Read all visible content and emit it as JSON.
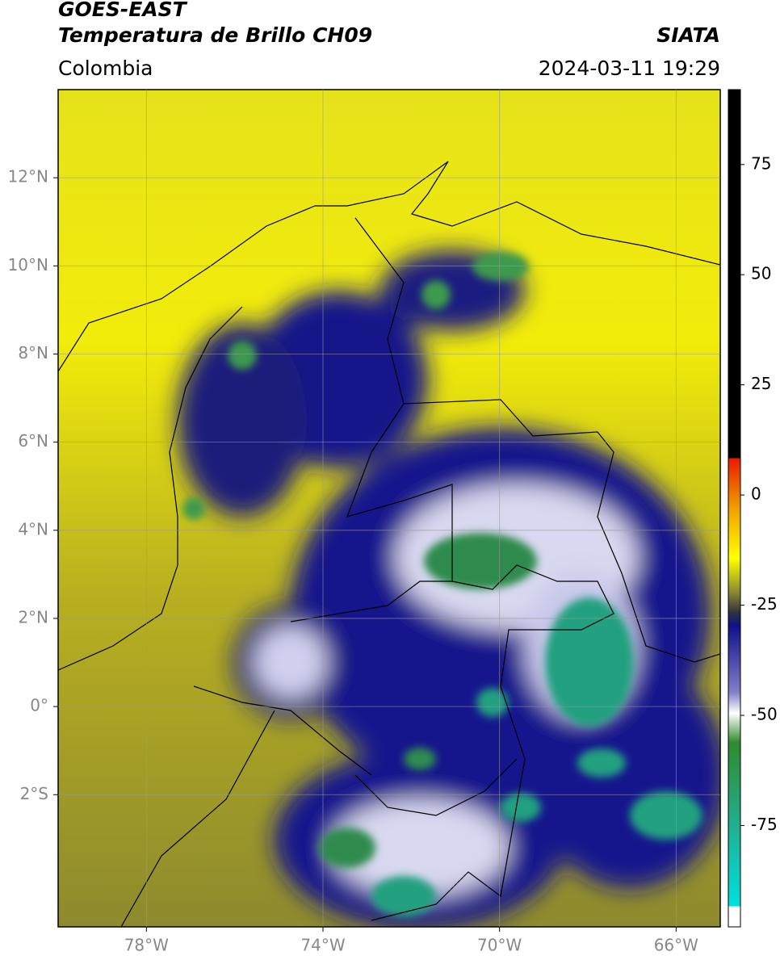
{
  "chart_data": {
    "type": "map",
    "title": "GOES-EAST",
    "subtitle": "Temperatura de Brillo CH09",
    "source": "SIATA",
    "region": "Colombia",
    "datetime": "2024-03-11 19:29",
    "xlim": [
      -80,
      -65
    ],
    "xticks": [
      {
        "value": -78,
        "label": "78°W"
      },
      {
        "value": -74,
        "label": "74°W"
      },
      {
        "value": -70,
        "label": "70°W"
      },
      {
        "value": -66,
        "label": "66°W"
      }
    ],
    "ylim": [
      -5,
      14
    ],
    "yticks": [
      {
        "value": 12,
        "label": "12°N"
      },
      {
        "value": 10,
        "label": "10°N"
      },
      {
        "value": 8,
        "label": "8°N"
      },
      {
        "value": 6,
        "label": "6°N"
      },
      {
        "value": 4,
        "label": "4°N"
      },
      {
        "value": 2,
        "label": "2°N"
      },
      {
        "value": 0,
        "label": "0°"
      },
      {
        "value": -2,
        "label": "2°S"
      }
    ],
    "grid": true,
    "colorbar": {
      "lim": [
        -98,
        92
      ],
      "ticks": [
        75,
        50,
        25,
        0,
        -25,
        -50,
        -75
      ]
    }
  }
}
